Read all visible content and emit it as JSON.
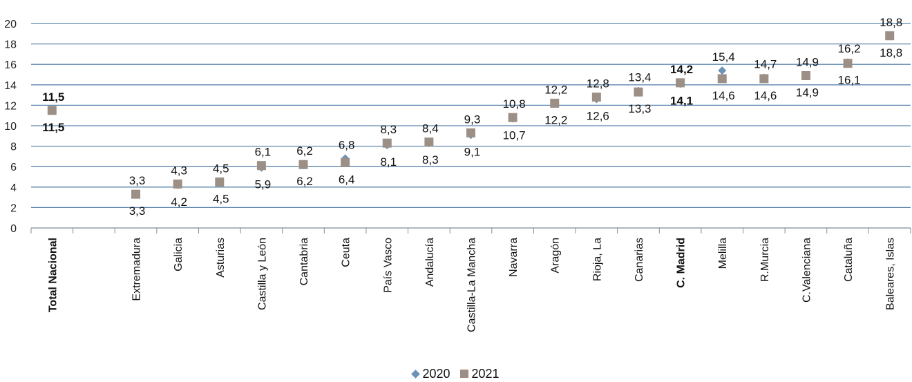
{
  "chart_data": {
    "type": "scatter",
    "categories": [
      "Total Nacional",
      "",
      "Extremadura",
      "Galicia",
      "Asturias",
      "Castilla y León",
      "Cantabria",
      "Ceuta",
      "País Vasco",
      "Andalucía",
      "Castilla-La Mancha",
      "Navarra",
      "Aragón",
      "Rioja, La",
      "Canarias",
      "C.  Madrid",
      "Melilla",
      "R.Murcia",
      "C.Valenciana",
      "Cataluña",
      "Baleares, Islas"
    ],
    "bold_categories": [
      "Total Nacional",
      "C.  Madrid"
    ],
    "series": [
      {
        "name": "2020",
        "marker": "diamond",
        "color": "#6b94b8",
        "values": [
          11.5,
          null,
          3.3,
          4.2,
          4.5,
          5.9,
          6.2,
          6.8,
          8.1,
          8.3,
          9.1,
          10.7,
          12.2,
          12.6,
          13.4,
          14.1,
          15.4,
          14.7,
          14.9,
          16.2,
          18.8
        ],
        "labels": [
          "11,5",
          "",
          "3,3",
          "4,2",
          "4,5",
          "5,9",
          "6,2",
          "6,8",
          "8,1",
          "8,3",
          "9,1",
          "10,7",
          "12,2",
          "12,6",
          "13,4",
          "14,1",
          "15,4",
          "14,7",
          "14,9",
          "16,2",
          "18,8"
        ]
      },
      {
        "name": "2021",
        "marker": "square",
        "color": "#9b8f86",
        "values": [
          11.5,
          null,
          3.3,
          4.3,
          4.5,
          6.1,
          6.2,
          6.4,
          8.3,
          8.4,
          9.3,
          10.8,
          12.2,
          12.8,
          13.3,
          14.2,
          14.6,
          14.6,
          14.9,
          16.1,
          18.8
        ],
        "labels": [
          "11,5",
          "",
          "3,3",
          "4,3",
          "4,5",
          "6,1",
          "6,2",
          "6,4",
          "8,3",
          "8,4",
          "9,3",
          "10,8",
          "12,2",
          "12,8",
          "13,3",
          "14,2",
          "14,6",
          "14,6",
          "14,9",
          "16,1",
          "18,8"
        ]
      }
    ],
    "yticks": [
      "0",
      "2",
      "4",
      "6",
      "8",
      "10",
      "12",
      "14",
      "16",
      "18",
      "20"
    ],
    "ylim": [
      0,
      20
    ],
    "grid": true,
    "legend_position": "bottom-center",
    "title": "",
    "xlabel": "",
    "ylabel": ""
  }
}
